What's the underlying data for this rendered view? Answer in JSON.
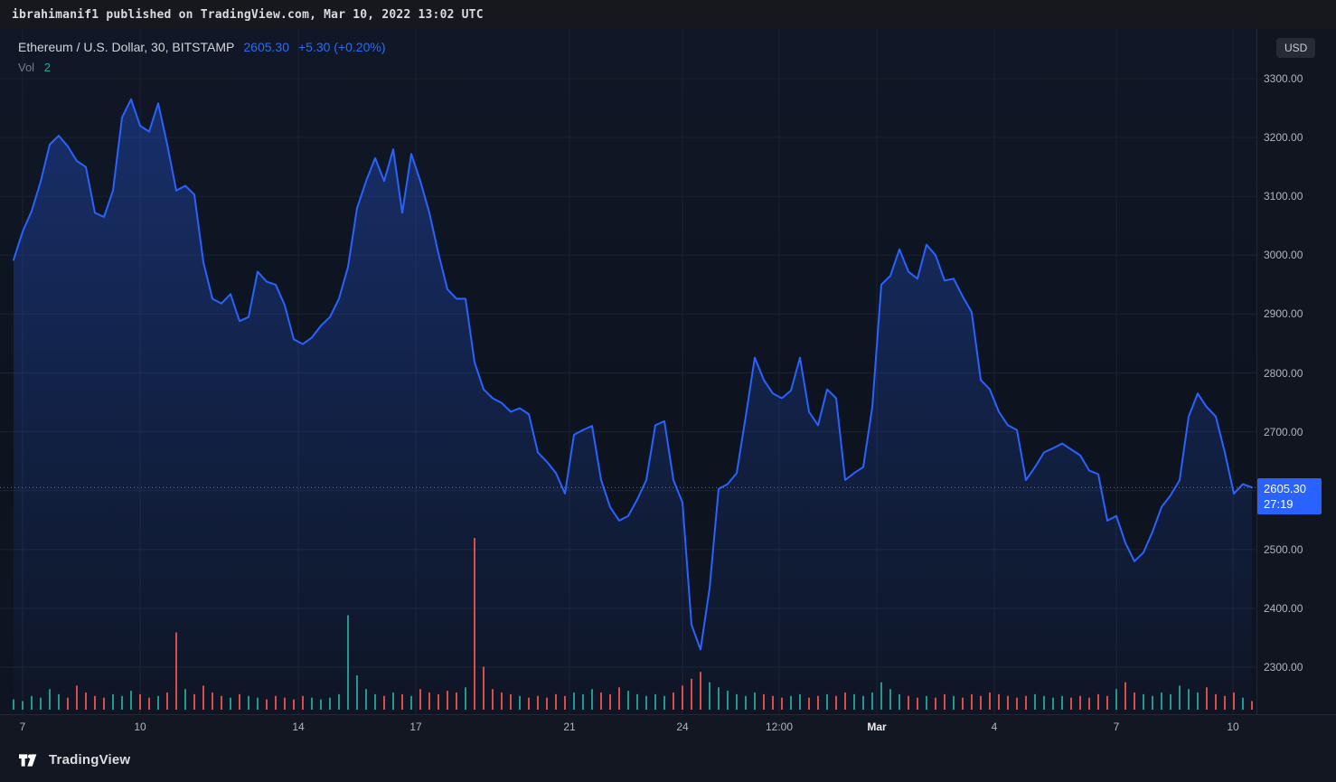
{
  "top_bar": {
    "text": "ibrahimanif1 published on TradingView.com, Mar 10, 2022 13:02 UTC"
  },
  "legend": {
    "symbol": "Ethereum / U.S. Dollar, 30, BITSTAMP",
    "price": "2605.30",
    "change": "+5.30 (+0.20%)",
    "vol_label": "Vol",
    "vol_value": "2"
  },
  "price_scale": {
    "currency": "USD",
    "labels": [
      "3300.00",
      "3200.00",
      "3100.00",
      "3000.00",
      "2900.00",
      "2800.00",
      "2700.00",
      "2500.00",
      "2400.00",
      "2300.00"
    ],
    "current_price": "2605.30",
    "countdown": "27:19"
  },
  "time_axis": {
    "ticks": [
      {
        "label": "7"
      },
      {
        "label": "10"
      },
      {
        "label": "14"
      },
      {
        "label": "17"
      },
      {
        "label": "21"
      },
      {
        "label": "24"
      },
      {
        "label": "12:00"
      },
      {
        "label": "Mar",
        "month": true
      },
      {
        "label": "4"
      },
      {
        "label": "7"
      },
      {
        "label": "10"
      }
    ]
  },
  "footer": {
    "brand": "TradingView"
  },
  "colors": {
    "background": "#131722",
    "accent": "#2962ff",
    "up": "#26a69a",
    "down": "#ef5350",
    "axis_text": "#b2b5be"
  },
  "chart_data": {
    "type": "line",
    "title": "Ethereum / U.S. Dollar, 30, BITSTAMP",
    "symbol": "ETHUSD",
    "exchange": "BITSTAMP",
    "interval": "30",
    "unit": "USD",
    "x_range": "Feb 7 - Mar 10, 2022 (30-minute bars, sampled)",
    "x_tick_labels": [
      "7",
      "10",
      "14",
      "17",
      "21",
      "24",
      "12:00",
      "Mar",
      "4",
      "7",
      "10"
    ],
    "y_tick_values": [
      3300,
      3200,
      3100,
      3000,
      2900,
      2800,
      2700,
      2600,
      2500,
      2400,
      2300
    ],
    "ylim": [
      2220,
      3385
    ],
    "current_price": 2605.3,
    "current_change": 5.3,
    "current_change_pct": 0.2,
    "line_color": "#2962ff",
    "up_color": "#26a69a",
    "down_color": "#ef5350",
    "legend_position": "top-left",
    "grid": true,
    "prices": [
      2992,
      3040,
      3075,
      3125,
      3188,
      3203,
      3185,
      3160,
      3150,
      3072,
      3065,
      3110,
      3234,
      3265,
      3220,
      3210,
      3258,
      3188,
      3110,
      3118,
      3103,
      2988,
      2926,
      2918,
      2934,
      2888,
      2895,
      2972,
      2955,
      2950,
      2915,
      2857,
      2849,
      2860,
      2880,
      2895,
      2926,
      2980,
      3080,
      3126,
      3165,
      3126,
      3180,
      3072,
      3172,
      3126,
      3072,
      3003,
      2942,
      2926,
      2926,
      2818,
      2772,
      2757,
      2749,
      2734,
      2740,
      2730,
      2665,
      2649,
      2630,
      2595,
      2695,
      2703,
      2710,
      2618,
      2572,
      2549,
      2557,
      2585,
      2618,
      2711,
      2718,
      2618,
      2580,
      2372,
      2330,
      2434,
      2603,
      2611,
      2630,
      2726,
      2826,
      2788,
      2765,
      2757,
      2770,
      2826,
      2734,
      2711,
      2772,
      2757,
      2618,
      2630,
      2640,
      2742,
      2950,
      2965,
      3010,
      2972,
      2960,
      3018,
      3000,
      2957,
      2960,
      2930,
      2903,
      2788,
      2772,
      2734,
      2711,
      2703,
      2618,
      2640,
      2665,
      2672,
      2680,
      2670,
      2660,
      2634,
      2628,
      2549,
      2557,
      2511,
      2480,
      2495,
      2530,
      2572,
      2592,
      2618,
      2726,
      2765,
      2742,
      2726,
      2665,
      2595,
      2611,
      2605.3
    ],
    "volumes": [
      6,
      5,
      8,
      7,
      12,
      9,
      7,
      14,
      10,
      8,
      7,
      9,
      8,
      11,
      9,
      7,
      8,
      10,
      45,
      12,
      9,
      14,
      10,
      8,
      7,
      9,
      8,
      7,
      6,
      8,
      7,
      6,
      8,
      7,
      6,
      7,
      9,
      55,
      20,
      12,
      9,
      8,
      10,
      9,
      8,
      12,
      10,
      9,
      11,
      10,
      13,
      100,
      25,
      12,
      10,
      9,
      8,
      7,
      8,
      7,
      9,
      8,
      10,
      9,
      12,
      10,
      9,
      13,
      11,
      9,
      8,
      9,
      8,
      10,
      14,
      18,
      22,
      16,
      13,
      11,
      9,
      8,
      10,
      9,
      8,
      7,
      8,
      9,
      7,
      8,
      9,
      8,
      10,
      9,
      8,
      10,
      16,
      12,
      9,
      8,
      7,
      8,
      7,
      9,
      8,
      7,
      9,
      8,
      10,
      9,
      8,
      7,
      8,
      9,
      8,
      7,
      8,
      7,
      8,
      7,
      9,
      8,
      12,
      16,
      10,
      9,
      8,
      10,
      9,
      14,
      12,
      10,
      13,
      9,
      8,
      10,
      7,
      5
    ]
  }
}
